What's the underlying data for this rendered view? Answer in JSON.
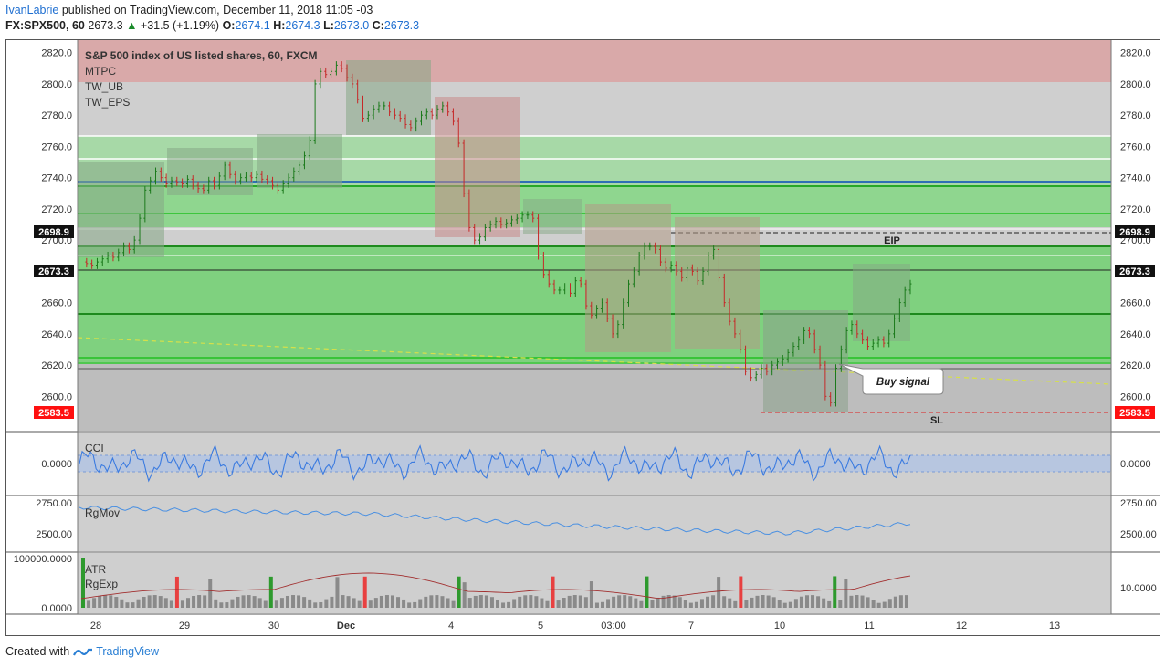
{
  "header": {
    "author": "IvanLabrie",
    "published_text": " published on TradingView.com, December 11, 2018 11:05 -03",
    "symbol": "FX:SPX500, 60",
    "last": "2673.3",
    "change_arrow": "▲",
    "change": "+31.5 (+1.19%)",
    "o_label": "O:",
    "o_value": "2674.1",
    "h_label": "H:",
    "h_value": "2674.3",
    "l_label": "L:",
    "l_value": "2673.0",
    "c_label": "C:",
    "c_value": "2673.3"
  },
  "main_pane": {
    "title": "S&P 500 index of US listed shares, 60, FXCM",
    "indicators": [
      "MTPC",
      "TW_UB",
      "TW_EPS"
    ],
    "price_ticks": [
      "2820.0",
      "2800.0",
      "2780.0",
      "2760.0",
      "2740.0",
      "2720.0",
      "2700.0",
      "2680.0",
      "2660.0",
      "2640.0",
      "2620.0",
      "2600.0"
    ],
    "tick_values": [
      2820,
      2800,
      2780,
      2760,
      2740,
      2720,
      2700,
      2680,
      2660,
      2640,
      2620,
      2600
    ],
    "ylim": [
      2578,
      2828
    ],
    "labels": {
      "eip_price": "2698.9",
      "last_price": "2673.3",
      "sl_price": "2583.5",
      "eip_text": "EIP",
      "sl_text": "SL",
      "buy_signal": "Buy signal"
    }
  },
  "cci_pane": {
    "name": "CCI",
    "tick": "0.0000"
  },
  "rgmov_pane": {
    "name": "RgMov",
    "ticks": [
      "2750.00",
      "2500.00"
    ]
  },
  "atr_pane": {
    "names": [
      "ATR",
      "RgExp"
    ],
    "left_ticks": [
      "100000.0000",
      "0.0000"
    ],
    "right_tick": "10.0000"
  },
  "time_axis": [
    "28",
    "29",
    "30",
    "Dec",
    "4",
    "5",
    "03:00",
    "7",
    "10",
    "11",
    "12",
    "13"
  ],
  "footer": {
    "created_with": "Created with",
    "brand": "TradingView"
  },
  "colors": {
    "up": "#1b7a1b",
    "down": "#c62828",
    "green_zone": "#7bdc7b",
    "red_zone": "#e8a3a3",
    "cci": "#3b7be0",
    "rgmov": "#4a90e2",
    "label_red": "#ff0000"
  }
}
